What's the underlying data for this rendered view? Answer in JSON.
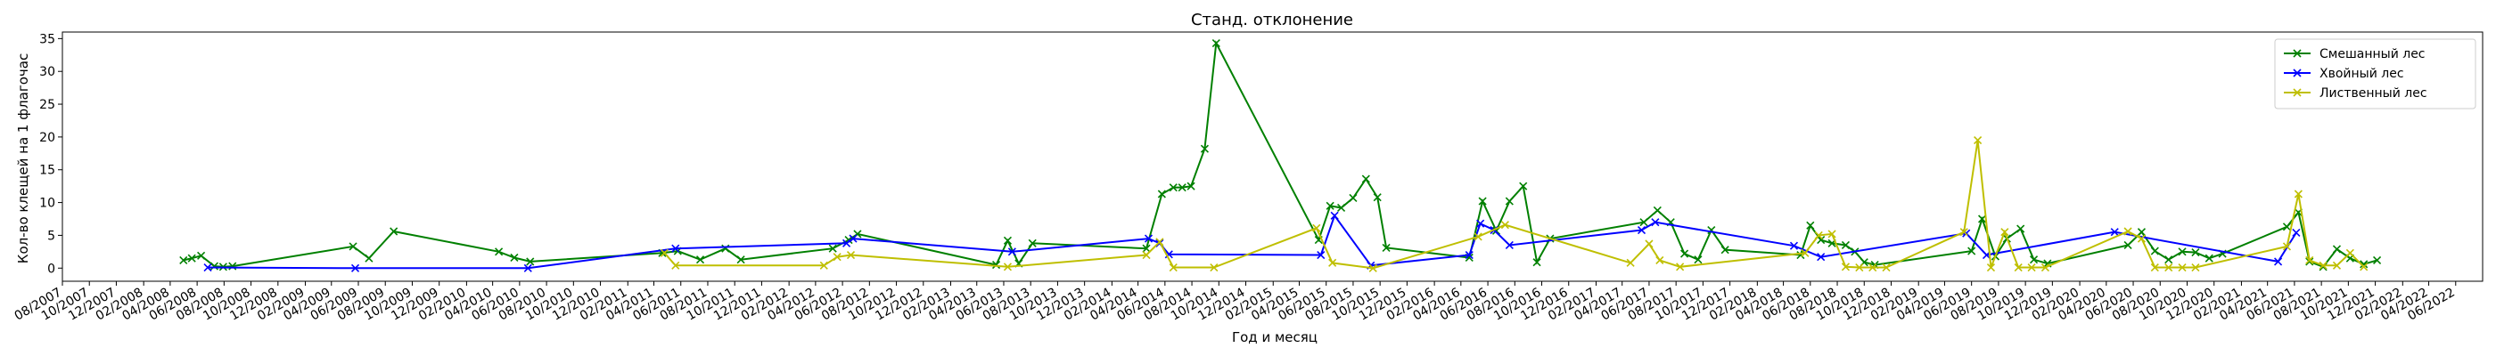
{
  "chart_data": {
    "type": "line",
    "title": "Станд. отклонение",
    "xlabel": "Год и месяц",
    "ylabel": "Кол-во клещей на 1 флагочас",
    "ylim": [
      -2,
      36
    ],
    "yticks": [
      0,
      5,
      10,
      15,
      20,
      25,
      30,
      35
    ],
    "xlim": [
      "2007-08-01",
      "2022-08-01"
    ],
    "xtick_labels": [
      "08/2007",
      "10/2007",
      "12/2007",
      "02/2008",
      "04/2008",
      "06/2008",
      "08/2008",
      "10/2008",
      "12/2008",
      "02/2009",
      "04/2009",
      "06/2009",
      "08/2009",
      "10/2009",
      "12/2009",
      "02/2010",
      "04/2010",
      "06/2010",
      "08/2010",
      "10/2010",
      "12/2010",
      "02/2011",
      "04/2011",
      "06/2011",
      "08/2011",
      "10/2011",
      "12/2011",
      "02/2012",
      "04/2012",
      "06/2012",
      "08/2012",
      "10/2012",
      "12/2012",
      "02/2013",
      "04/2013",
      "06/2013",
      "08/2013",
      "10/2013",
      "12/2013",
      "02/2014",
      "04/2014",
      "06/2014",
      "08/2014",
      "10/2014",
      "12/2014",
      "02/2015",
      "04/2015",
      "06/2015",
      "08/2015",
      "10/2015",
      "12/2015",
      "02/2016",
      "04/2016",
      "06/2016",
      "08/2016",
      "10/2016",
      "12/2016",
      "02/2017",
      "04/2017",
      "06/2017",
      "08/2017",
      "10/2017",
      "12/2017",
      "02/2018",
      "04/2018",
      "06/2018",
      "08/2018",
      "10/2018",
      "12/2018",
      "02/2019",
      "04/2019",
      "06/2019",
      "08/2019",
      "10/2019",
      "12/2019",
      "02/2020",
      "04/2020",
      "06/2020",
      "08/2020",
      "10/2020",
      "12/2020",
      "02/2021",
      "04/2021",
      "06/2021",
      "08/2021",
      "10/2021",
      "12/2021",
      "02/2022",
      "04/2022",
      "06/2022"
    ],
    "legend_position": "upper right",
    "series": [
      {
        "name": "Смешанный лес",
        "color": "#008000",
        "points": [
          [
            "2008-05-01",
            1.2
          ],
          [
            "2008-05-20",
            1.5
          ],
          [
            "2008-06-10",
            1.9
          ],
          [
            "2008-07-10",
            0.3
          ],
          [
            "2008-07-30",
            0.2
          ],
          [
            "2008-08-20",
            0.3
          ],
          [
            "2009-05-20",
            3.3
          ],
          [
            "2009-06-25",
            1.5
          ],
          [
            "2009-08-20",
            5.6
          ],
          [
            "2010-04-15",
            2.5
          ],
          [
            "2010-05-20",
            1.6
          ],
          [
            "2010-06-25",
            1.0
          ],
          [
            "2011-04-20",
            2.3
          ],
          [
            "2011-05-25",
            2.6
          ],
          [
            "2011-07-15",
            1.3
          ],
          [
            "2011-09-10",
            3.0
          ],
          [
            "2011-10-15",
            1.3
          ],
          [
            "2012-05-10",
            3.0
          ],
          [
            "2012-06-15",
            4.3
          ],
          [
            "2012-07-05",
            5.2
          ],
          [
            "2013-05-15",
            0.5
          ],
          [
            "2013-06-10",
            4.2
          ],
          [
            "2013-07-05",
            0.7
          ],
          [
            "2013-08-05",
            3.8
          ],
          [
            "2014-04-20",
            3.0
          ],
          [
            "2014-05-25",
            11.3
          ],
          [
            "2014-06-20",
            12.3
          ],
          [
            "2014-07-10",
            12.3
          ],
          [
            "2014-07-30",
            12.5
          ],
          [
            "2014-08-30",
            18.2
          ],
          [
            "2014-09-25",
            34.3
          ],
          [
            "2015-05-15",
            4.3
          ],
          [
            "2015-06-10",
            9.5
          ],
          [
            "2015-07-05",
            9.2
          ],
          [
            "2015-08-01",
            10.7
          ],
          [
            "2015-08-30",
            13.6
          ],
          [
            "2015-09-25",
            10.8
          ],
          [
            "2015-10-15",
            3.1
          ],
          [
            "2016-04-20",
            1.6
          ],
          [
            "2016-05-20",
            10.2
          ],
          [
            "2016-06-20",
            5.7
          ],
          [
            "2016-07-20",
            10.2
          ],
          [
            "2016-08-20",
            12.5
          ],
          [
            "2016-09-20",
            0.9
          ],
          [
            "2016-10-20",
            4.5
          ],
          [
            "2017-05-20",
            7.0
          ],
          [
            "2017-06-20",
            8.8
          ],
          [
            "2017-07-20",
            7.0
          ],
          [
            "2017-08-20",
            2.2
          ],
          [
            "2017-09-20",
            1.3
          ],
          [
            "2017-10-20",
            5.8
          ],
          [
            "2017-11-20",
            2.8
          ],
          [
            "2018-05-10",
            2.0
          ],
          [
            "2018-06-01",
            6.5
          ],
          [
            "2018-06-25",
            4.3
          ],
          [
            "2018-07-20",
            3.8
          ],
          [
            "2018-08-20",
            3.5
          ],
          [
            "2018-09-10",
            2.5
          ],
          [
            "2018-10-01",
            0.9
          ],
          [
            "2018-10-25",
            0.5
          ],
          [
            "2019-06-01",
            2.6
          ],
          [
            "2019-06-25",
            7.5
          ],
          [
            "2019-07-25",
            1.8
          ],
          [
            "2019-08-20",
            4.5
          ],
          [
            "2019-09-20",
            6.0
          ],
          [
            "2019-10-20",
            1.3
          ],
          [
            "2019-11-20",
            0.7
          ],
          [
            "2020-05-20",
            3.5
          ],
          [
            "2020-06-20",
            5.5
          ],
          [
            "2020-07-20",
            2.6
          ],
          [
            "2020-08-20",
            1.3
          ],
          [
            "2020-09-20",
            2.5
          ],
          [
            "2020-10-20",
            2.4
          ],
          [
            "2020-11-20",
            1.5
          ],
          [
            "2020-12-20",
            2.2
          ],
          [
            "2021-05-15",
            6.3
          ],
          [
            "2021-06-10",
            8.5
          ],
          [
            "2021-07-05",
            1.0
          ],
          [
            "2021-08-05",
            0.2
          ],
          [
            "2021-09-05",
            2.9
          ],
          [
            "2021-10-05",
            1.5
          ],
          [
            "2021-11-05",
            0.6
          ],
          [
            "2021-12-05",
            1.2
          ]
        ]
      },
      {
        "name": "Хвойный лес",
        "color": "#0000ff",
        "points": [
          [
            "2008-06-25",
            0.1
          ],
          [
            "2009-05-25",
            0.0
          ],
          [
            "2010-06-20",
            0.0
          ],
          [
            "2011-05-20",
            3.0
          ],
          [
            "2012-06-10",
            3.8
          ],
          [
            "2012-06-25",
            4.5
          ],
          [
            "2013-06-20",
            2.5
          ],
          [
            "2014-04-25",
            4.5
          ],
          [
            "2014-05-20",
            3.8
          ],
          [
            "2014-06-10",
            2.1
          ],
          [
            "2015-05-20",
            2.0
          ],
          [
            "2015-06-20",
            8.0
          ],
          [
            "2015-09-10",
            0.4
          ],
          [
            "2016-04-20",
            2.0
          ],
          [
            "2016-05-15",
            6.8
          ],
          [
            "2016-06-15",
            5.8
          ],
          [
            "2016-07-20",
            3.5
          ],
          [
            "2017-05-15",
            5.8
          ],
          [
            "2017-06-15",
            7.0
          ],
          [
            "2018-04-25",
            3.4
          ],
          [
            "2018-06-25",
            1.7
          ],
          [
            "2019-05-20",
            5.3
          ],
          [
            "2019-07-05",
            2.0
          ],
          [
            "2020-04-20",
            5.5
          ],
          [
            "2021-04-25",
            1.0
          ],
          [
            "2021-06-05",
            5.4
          ]
        ]
      },
      {
        "name": "Лиственный лес",
        "color": "#bfbf00",
        "points": [
          [
            "2011-04-25",
            2.3
          ],
          [
            "2011-05-20",
            0.4
          ],
          [
            "2012-04-20",
            0.4
          ],
          [
            "2012-05-20",
            1.7
          ],
          [
            "2012-06-20",
            2.0
          ],
          [
            "2013-06-10",
            0.2
          ],
          [
            "2014-04-20",
            2.0
          ],
          [
            "2014-05-20",
            4.0
          ],
          [
            "2014-06-20",
            0.1
          ],
          [
            "2014-09-20",
            0.1
          ],
          [
            "2015-05-10",
            6.1
          ],
          [
            "2015-06-15",
            0.8
          ],
          [
            "2015-09-15",
            0.0
          ],
          [
            "2016-05-10",
            4.8
          ],
          [
            "2016-07-10",
            6.6
          ],
          [
            "2017-04-20",
            0.8
          ],
          [
            "2017-06-01",
            3.7
          ],
          [
            "2017-06-25",
            1.2
          ],
          [
            "2017-08-10",
            0.2
          ],
          [
            "2018-05-20",
            2.3
          ],
          [
            "2018-06-20",
            5.0
          ],
          [
            "2018-07-20",
            5.2
          ],
          [
            "2018-08-20",
            0.2
          ],
          [
            "2018-09-20",
            0.1
          ],
          [
            "2018-10-20",
            0.1
          ],
          [
            "2018-11-20",
            0.1
          ],
          [
            "2019-05-15",
            5.5
          ],
          [
            "2019-06-15",
            19.5
          ],
          [
            "2019-07-15",
            0.1
          ],
          [
            "2019-08-15",
            5.5
          ],
          [
            "2019-09-15",
            0.1
          ],
          [
            "2019-10-15",
            0.1
          ],
          [
            "2019-11-15",
            0.1
          ],
          [
            "2020-05-20",
            5.6
          ],
          [
            "2020-06-20",
            4.5
          ],
          [
            "2020-07-20",
            0.1
          ],
          [
            "2020-08-20",
            0.1
          ],
          [
            "2020-09-20",
            0.1
          ],
          [
            "2020-10-20",
            0.1
          ],
          [
            "2021-05-15",
            3.3
          ],
          [
            "2021-06-10",
            11.3
          ],
          [
            "2021-07-05",
            1.2
          ],
          [
            "2021-08-05",
            0.4
          ],
          [
            "2021-09-05",
            0.4
          ],
          [
            "2021-10-05",
            2.3
          ],
          [
            "2021-11-05",
            0.2
          ]
        ]
      }
    ]
  }
}
